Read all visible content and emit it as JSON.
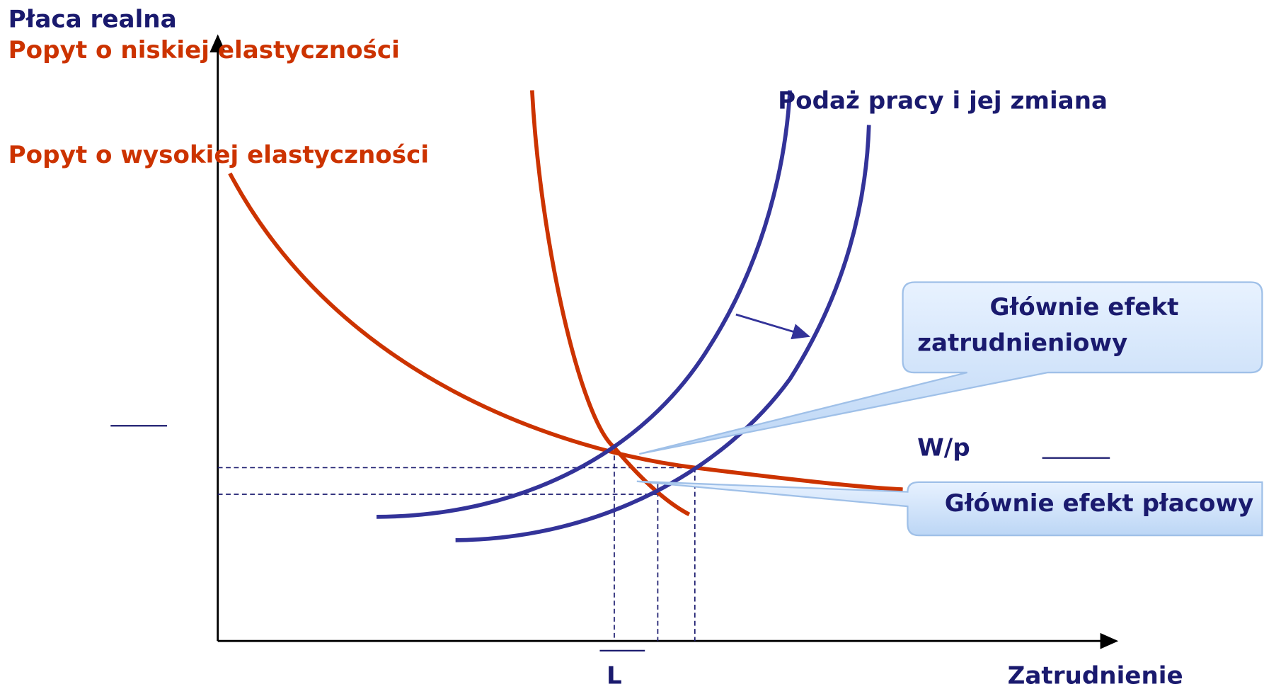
{
  "axis_labels": {
    "y": "Płaca realna",
    "x": "Zatrudnienie",
    "x_point": "L",
    "y_point": "W/p"
  },
  "curves": {
    "demand_low": "Popyt o niskiej elastyczności",
    "demand_high": "Popyt o wysokiej elastyczności",
    "supply": "Podaż pracy i jej zmiana"
  },
  "callouts": [
    {
      "lines": [
        "Głównie efekt",
        "zatrudnieniowy"
      ]
    },
    {
      "lines": [
        "Głównie efekt płacowy"
      ]
    }
  ]
}
